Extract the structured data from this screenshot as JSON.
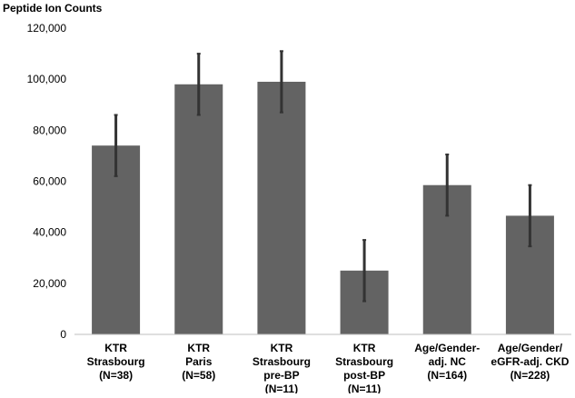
{
  "chart_data": {
    "type": "bar",
    "title": "",
    "ylabel": "Peptide Ion Counts",
    "xlabel": "",
    "ylim": [
      0,
      120000
    ],
    "yticks": [
      {
        "value": 0,
        "label": "0"
      },
      {
        "value": 20000,
        "label": "20,000"
      },
      {
        "value": 40000,
        "label": "40,000"
      },
      {
        "value": 60000,
        "label": "60,000"
      },
      {
        "value": 80000,
        "label": "80,000"
      },
      {
        "value": 100000,
        "label": "100,000"
      },
      {
        "value": 120000,
        "label": "120,000"
      }
    ],
    "grid": false,
    "legend": "none",
    "bar_color": "#636363",
    "error_bar_color": "#333333",
    "categories": [
      [
        "KTR",
        "Strasbourg",
        "(N=38)"
      ],
      [
        "KTR",
        "Paris",
        "(N=58)"
      ],
      [
        "KTR",
        "Strasbourg",
        "pre-BP",
        "(N=11)"
      ],
      [
        "KTR",
        "Strasbourg",
        "post-BP",
        "(N=11)"
      ],
      [
        "Age/Gender-",
        "adj. NC",
        "(N=164)"
      ],
      [
        "Age/Gender/",
        "eGFR-adj. CKD",
        "(N=228)"
      ]
    ],
    "values": [
      74000,
      98000,
      99000,
      25000,
      58500,
      46500
    ],
    "error": [
      12000,
      12000,
      12000,
      12000,
      12000,
      12000
    ]
  }
}
